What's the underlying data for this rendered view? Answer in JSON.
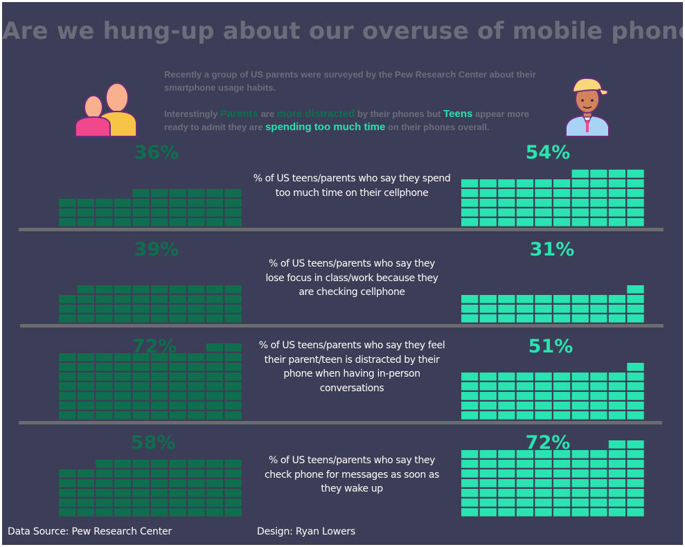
{
  "title": "Are we hung-up about our overuse of mobile phones?",
  "intro": {
    "line1": "Recently a group of US parents were surveyed by the Pew Research Center about their smartphone usage habits.",
    "line2_a": "Interestingly ",
    "line2_parents": "Parents",
    "line2_b": " are ",
    "line2_more_distracted": "more distracted",
    "line2_c": " by their phones but ",
    "line2_teens": "Teens",
    "line2_d": " appear more ready to admit they are ",
    "line2_spending": "spending too much time",
    "line2_e": " on their phones overall."
  },
  "colors": {
    "background": "#3b3e56",
    "parents": "#0f6e4e",
    "teens": "#29e3b0",
    "muted_text": "#6b6d7c",
    "divider": "#6b6c6f"
  },
  "icons": {
    "parents": "parents-icon",
    "teen": "teen-icon"
  },
  "chart_data": {
    "type": "bar",
    "units": "percent",
    "series": [
      {
        "name": "Parents",
        "values": [
          36,
          39,
          72,
          58
        ]
      },
      {
        "name": "Teens",
        "values": [
          54,
          31,
          51,
          72
        ]
      }
    ],
    "categories": [
      "% of US teens/parents who say they spend too much time on their cellphone",
      "% of US teens/parents who say they lose focus in class/work because they are checking cellphone",
      "% of US teens/parents who say they feel their parent/teen is distracted by their phone when having in-person conversations",
      "% of US teens/parents who say they check phone for messages as soon as they wake up"
    ],
    "labels": {
      "parents": [
        "36%",
        "39%",
        "72%",
        "58%"
      ],
      "teens": [
        "54%",
        "31%",
        "51%",
        "72%"
      ]
    }
  },
  "footer": {
    "source": "Data Source:  Pew Research Center",
    "design": "Design: Ryan Lowers"
  }
}
